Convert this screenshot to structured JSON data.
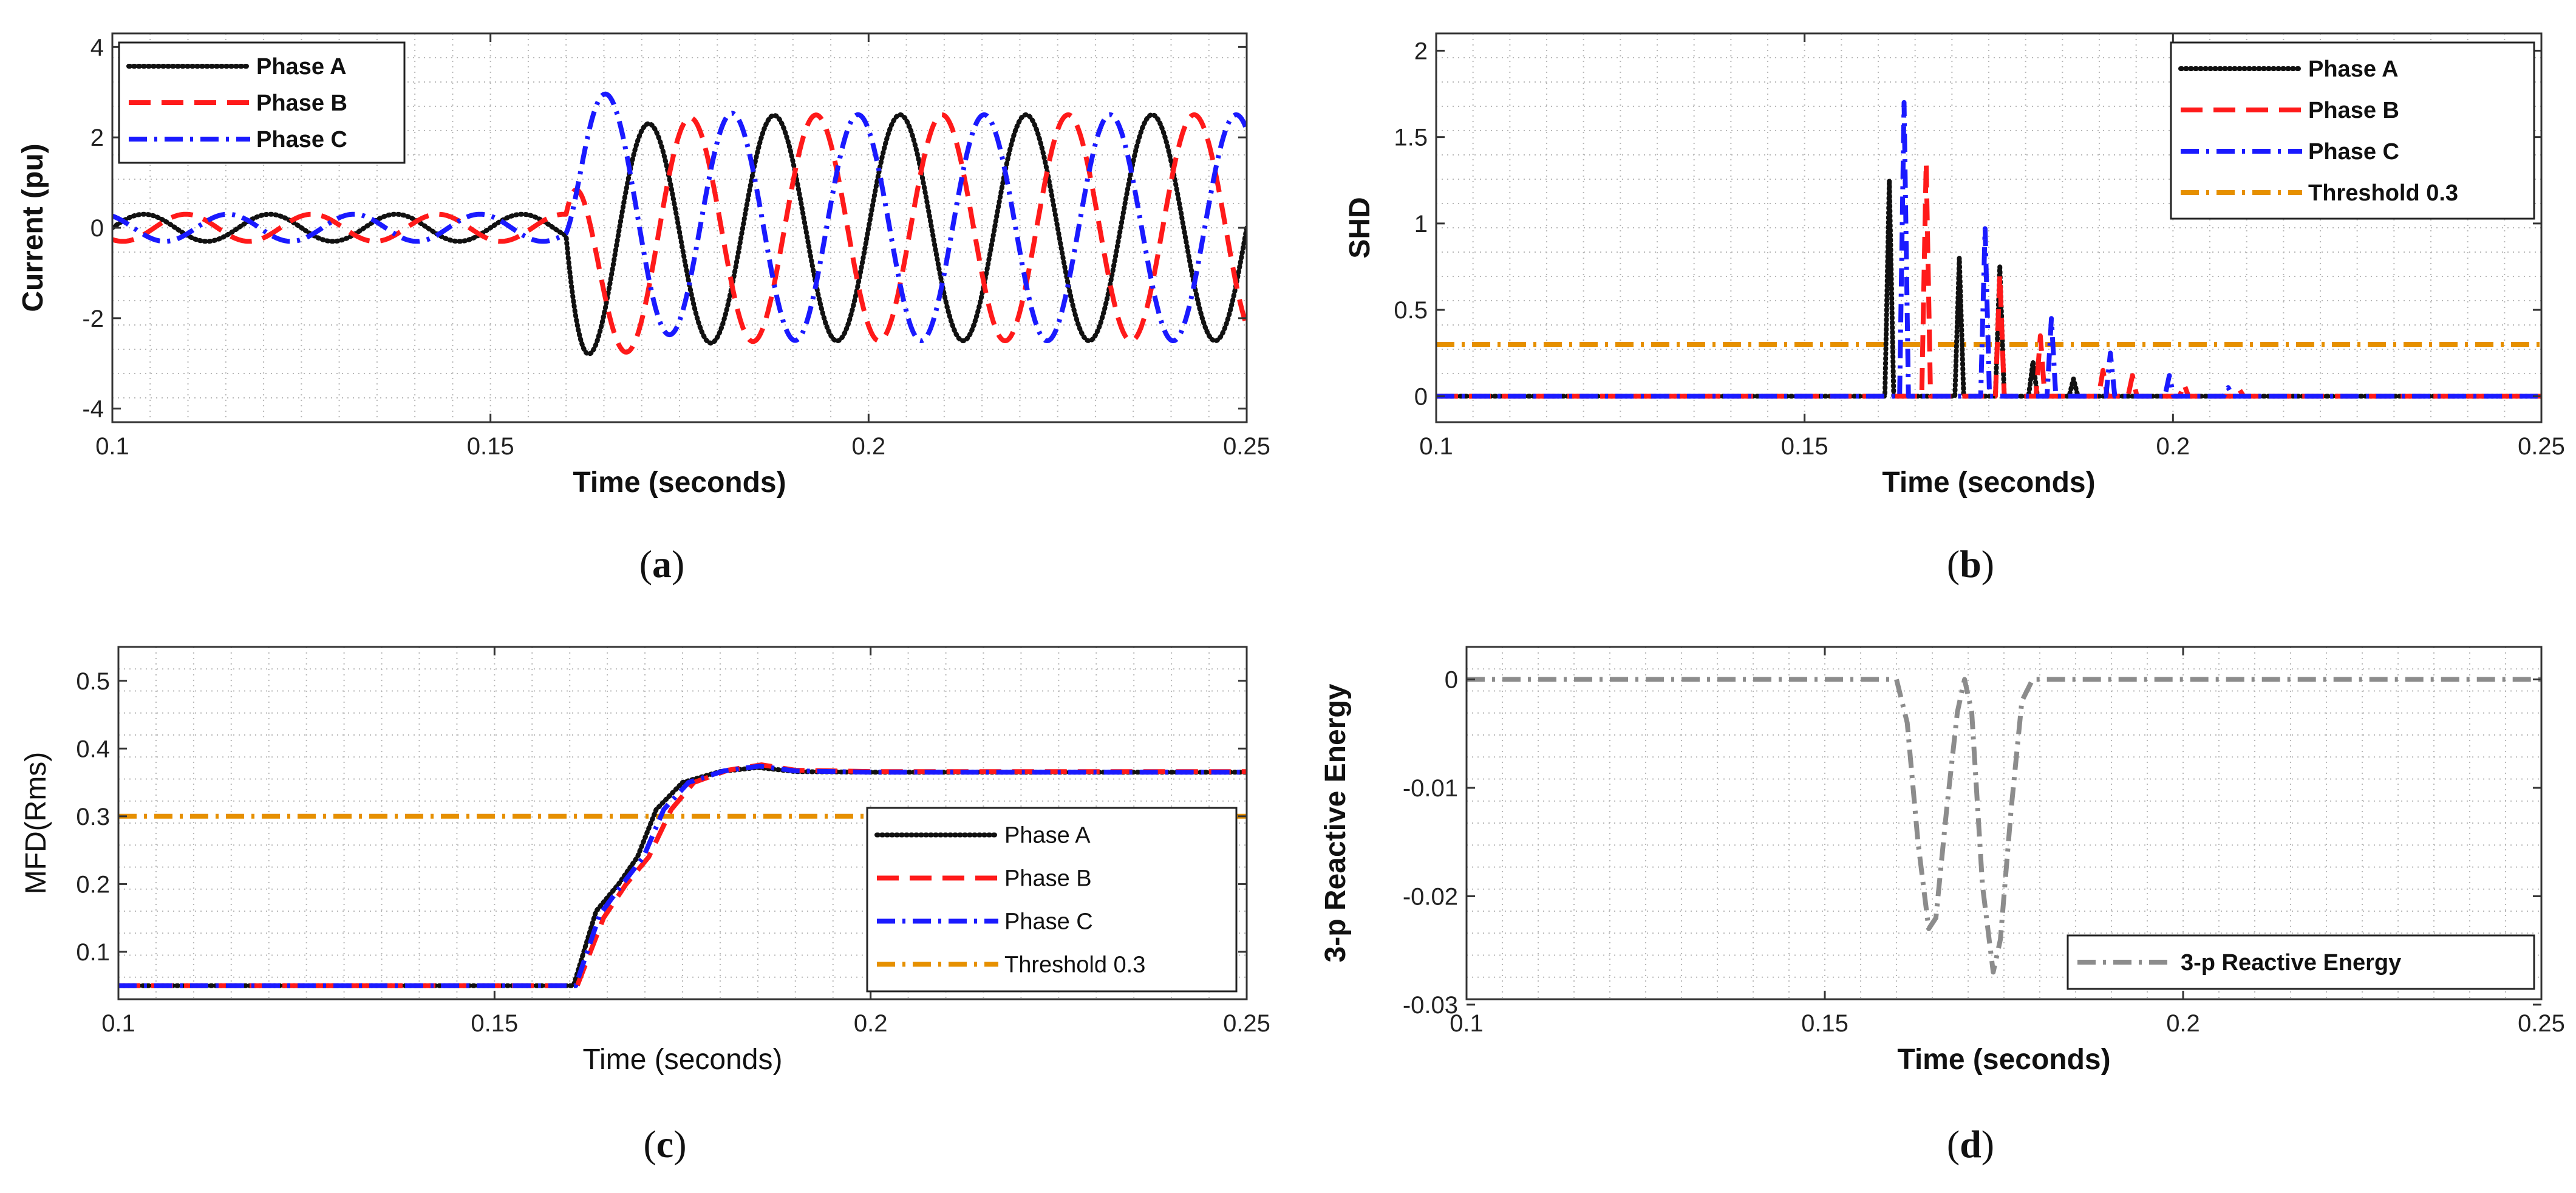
{
  "chart_data": [
    {
      "id": "a",
      "type": "line",
      "caption": "a",
      "xlabel": "Time (seconds)",
      "ylabel": "Current (pu)",
      "xlim": [
        0.1,
        0.25
      ],
      "ylim": [
        -4.3,
        4.3
      ],
      "xticks": [
        "0.1",
        "0.15",
        "0.2",
        "0.25"
      ],
      "yticks": [
        "-4",
        "-2",
        "0",
        "2",
        "4"
      ],
      "grid": true,
      "legend_position": "top-left",
      "series": [
        {
          "name": "Phase A",
          "color": "#111111",
          "style": "dotted",
          "model": {
            "f": 60,
            "pre_amp": 0.3,
            "post_amp": 2.5,
            "fault_t": 0.16,
            "phase_deg": 0,
            "transient": -1.2
          }
        },
        {
          "name": "Phase B",
          "color": "#ff1a1a",
          "style": "dashed",
          "model": {
            "f": 60,
            "pre_amp": 0.3,
            "post_amp": 2.5,
            "fault_t": 0.16,
            "phase_deg": -120,
            "transient": -1.0
          }
        },
        {
          "name": "Phase C",
          "color": "#1a1aff",
          "style": "dashdot",
          "model": {
            "f": 60,
            "pre_amp": 0.3,
            "post_amp": 2.5,
            "fault_t": 0.16,
            "phase_deg": 120,
            "transient": 1.3
          }
        }
      ]
    },
    {
      "id": "b",
      "type": "line",
      "caption": "b",
      "xlabel": "Time (seconds)",
      "ylabel": "SHD",
      "xlim": [
        0.1,
        0.25
      ],
      "ylim": [
        -0.15,
        2.1
      ],
      "xticks": [
        "0.1",
        "0.15",
        "0.2",
        "0.25"
      ],
      "yticks": [
        "0",
        "0.5",
        "1",
        "1.5",
        "2"
      ],
      "grid": true,
      "legend_position": "top-right",
      "series": [
        {
          "name": "Phase A",
          "color": "#111111",
          "style": "dotted",
          "spikes": [
            [
              0.1615,
              1.25
            ],
            [
              0.171,
              0.8
            ],
            [
              0.1765,
              0.75
            ],
            [
              0.181,
              0.2
            ],
            [
              0.1865,
              0.1
            ]
          ]
        },
        {
          "name": "Phase B",
          "color": "#ff1a1a",
          "style": "dashed",
          "spikes": [
            [
              0.1665,
              1.35
            ],
            [
              0.1765,
              0.7
            ],
            [
              0.182,
              0.35
            ],
            [
              0.1905,
              0.15
            ],
            [
              0.1945,
              0.12
            ],
            [
              0.2015,
              0.07
            ],
            [
              0.209,
              0.04
            ]
          ]
        },
        {
          "name": "Phase C",
          "color": "#1a1aff",
          "style": "dashdot",
          "spikes": [
            [
              0.1635,
              1.7
            ],
            [
              0.1745,
              0.97
            ],
            [
              0.1835,
              0.45
            ],
            [
              0.1915,
              0.25
            ],
            [
              0.1995,
              0.12
            ],
            [
              0.2075,
              0.05
            ]
          ]
        },
        {
          "name": "Threshold 0.3",
          "color": "#e69000",
          "style": "dashdot",
          "constant": 0.3
        }
      ]
    },
    {
      "id": "c",
      "type": "line",
      "caption": "c",
      "xlabel": "Time (seconds)",
      "ylabel": "MFD(Rms)",
      "xlim": [
        0.1,
        0.25
      ],
      "ylim": [
        0.03,
        0.55
      ],
      "xticks": [
        "0.1",
        "0.15",
        "0.2",
        "0.25"
      ],
      "yticks": [
        "0.1",
        "0.2",
        "0.3",
        "0.4",
        "0.5"
      ],
      "grid": true,
      "legend_position": "bottom-right",
      "series": [
        {
          "name": "Phase A",
          "color": "#111111",
          "style": "dotted",
          "points": [
            [
              0.1,
              0.05
            ],
            [
              0.1605,
              0.05
            ],
            [
              0.1635,
              0.16
            ],
            [
              0.1665,
              0.2
            ],
            [
              0.169,
              0.24
            ],
            [
              0.1715,
              0.31
            ],
            [
              0.175,
              0.35
            ],
            [
              0.18,
              0.366
            ],
            [
              0.185,
              0.372
            ],
            [
              0.19,
              0.366
            ],
            [
              0.2,
              0.365
            ],
            [
              0.25,
              0.365
            ]
          ]
        },
        {
          "name": "Phase B",
          "color": "#ff1a1a",
          "style": "dashed",
          "points": [
            [
              0.1,
              0.05
            ],
            [
              0.161,
              0.05
            ],
            [
              0.1645,
              0.15
            ],
            [
              0.1675,
              0.2
            ],
            [
              0.1705,
              0.24
            ],
            [
              0.1735,
              0.31
            ],
            [
              0.1765,
              0.35
            ],
            [
              0.181,
              0.368
            ],
            [
              0.1855,
              0.376
            ],
            [
              0.19,
              0.368
            ],
            [
              0.2,
              0.366
            ],
            [
              0.25,
              0.366
            ]
          ]
        },
        {
          "name": "Phase C",
          "color": "#1a1aff",
          "style": "dashdot",
          "points": [
            [
              0.1,
              0.05
            ],
            [
              0.1608,
              0.05
            ],
            [
              0.164,
              0.155
            ],
            [
              0.167,
              0.2
            ],
            [
              0.1698,
              0.24
            ],
            [
              0.1725,
              0.31
            ],
            [
              0.1758,
              0.35
            ],
            [
              0.1805,
              0.367
            ],
            [
              0.1852,
              0.374
            ],
            [
              0.19,
              0.367
            ],
            [
              0.2,
              0.365
            ],
            [
              0.25,
              0.365
            ]
          ]
        },
        {
          "name": "Threshold 0.3",
          "color": "#e69000",
          "style": "dashdot",
          "constant": 0.3
        }
      ]
    },
    {
      "id": "d",
      "type": "line",
      "caption": "d",
      "xlabel": "Time (seconds)",
      "ylabel": "3-p Reactive Energy",
      "xlim": [
        0.1,
        0.25
      ],
      "ylim": [
        -0.0295,
        0.003
      ],
      "xticks": [
        "0.1",
        "0.15",
        "0.2",
        "0.25"
      ],
      "yticks": [
        "0",
        "-0.01",
        "-0.02",
        "-0.03"
      ],
      "grid": true,
      "legend_position": "bottom-right",
      "series": [
        {
          "name": "3-p Reactive Energy",
          "color": "#8c8c8c",
          "style": "dashdot",
          "points": [
            [
              0.1,
              0
            ],
            [
              0.16,
              0
            ],
            [
              0.1615,
              -0.004
            ],
            [
              0.163,
              -0.015
            ],
            [
              0.1645,
              -0.023
            ],
            [
              0.1655,
              -0.022
            ],
            [
              0.167,
              -0.012
            ],
            [
              0.1685,
              -0.003
            ],
            [
              0.1695,
              0
            ],
            [
              0.1705,
              -0.003
            ],
            [
              0.172,
              -0.019
            ],
            [
              0.1735,
              -0.027
            ],
            [
              0.1745,
              -0.024
            ],
            [
              0.176,
              -0.012
            ],
            [
              0.1775,
              -0.002
            ],
            [
              0.179,
              0
            ],
            [
              0.25,
              0
            ]
          ]
        }
      ]
    }
  ]
}
